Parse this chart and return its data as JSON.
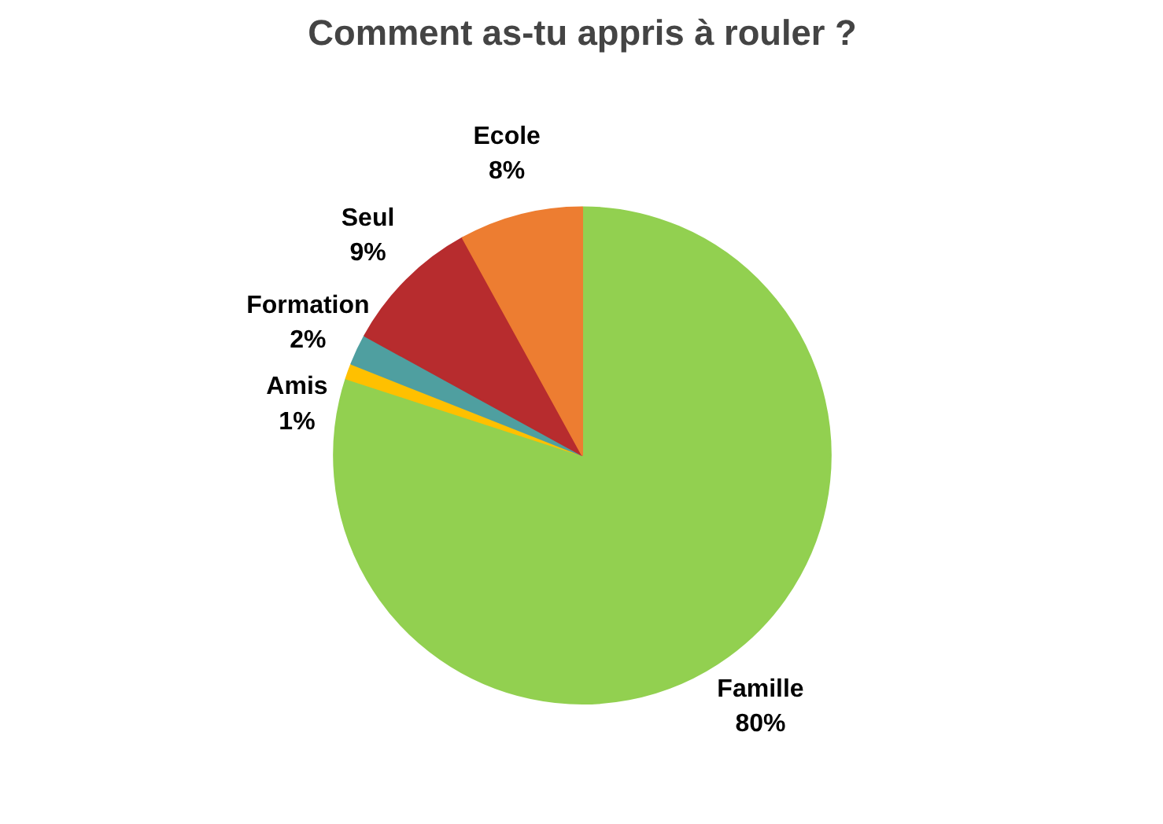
{
  "chart_data": {
    "type": "pie",
    "title": "Comment as-tu appris à rouler ?",
    "categories": [
      "Famille",
      "Amis",
      "Formation",
      "Seul",
      "Ecole"
    ],
    "values": [
      80,
      1,
      2,
      9,
      8
    ],
    "colors": [
      "#92d050",
      "#ffc000",
      "#4f9fa0",
      "#b72c2e",
      "#ed7d31"
    ],
    "value_labels": [
      "80%",
      "1%",
      "2%",
      "9%",
      "8%"
    ]
  }
}
